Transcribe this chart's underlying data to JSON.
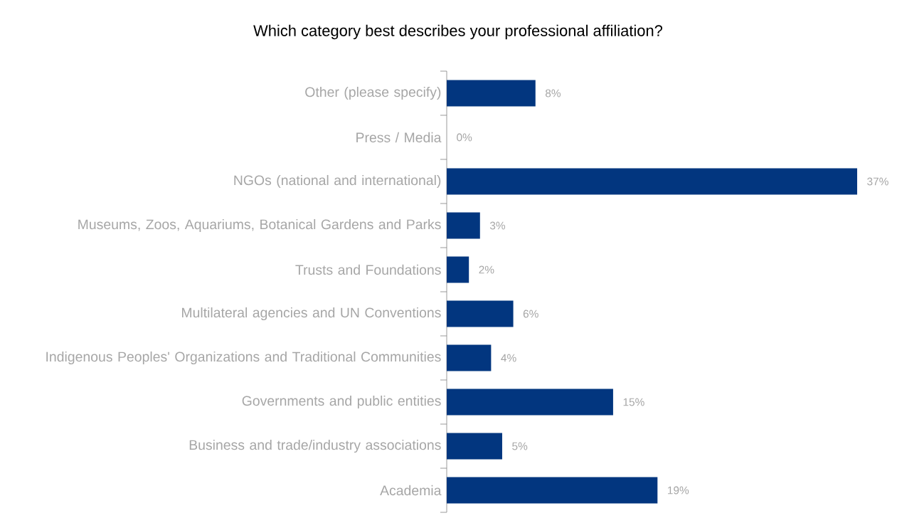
{
  "chart_data": {
    "type": "bar",
    "orientation": "horizontal",
    "title": "Which category best describes your professional affiliation?",
    "categories": [
      "Other (please specify)",
      "Press / Media",
      "NGOs (national and international)",
      "Museums, Zoos, Aquariums, Botanical Gardens and Parks",
      "Trusts and Foundations",
      "Multilateral agencies and UN Conventions",
      "Indigenous Peoples' Organizations and Traditional Communities",
      "Governments and public entities",
      "Business and trade/industry associations",
      "Academia"
    ],
    "values": [
      8,
      0,
      37,
      3,
      2,
      6,
      4,
      15,
      5,
      19
    ],
    "value_labels": [
      "8%",
      "0%",
      "37%",
      "3%",
      "2%",
      "6%",
      "4%",
      "15%",
      "5%",
      "19%"
    ],
    "color": "#02367f"
  }
}
